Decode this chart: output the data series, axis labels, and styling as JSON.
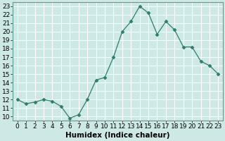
{
  "x": [
    0,
    1,
    2,
    3,
    4,
    5,
    6,
    7,
    8,
    9,
    10,
    11,
    12,
    13,
    14,
    15,
    16,
    17,
    18,
    19,
    20,
    21,
    22,
    23
  ],
  "y": [
    12,
    11.5,
    11.7,
    12,
    11.8,
    11.2,
    9.8,
    10.2,
    12,
    14.3,
    14.6,
    17,
    20,
    21.2,
    23,
    22.2,
    19.7,
    21.2,
    20.2,
    18.2,
    18.2,
    16.5,
    16,
    15
  ],
  "line_color": "#2e7d6e",
  "marker": "D",
  "marker_size": 2.5,
  "bg_color": "#cde8e5",
  "grid_color": "#ffffff",
  "title": "",
  "xlabel": "Humidex (Indice chaleur)",
  "ylabel": "",
  "xlim": [
    -0.5,
    23.5
  ],
  "ylim": [
    9.5,
    23.5
  ],
  "xtick_labels": [
    "0",
    "1",
    "2",
    "3",
    "4",
    "5",
    "6",
    "7",
    "8",
    "9",
    "10",
    "11",
    "12",
    "13",
    "14",
    "15",
    "16",
    "17",
    "18",
    "19",
    "20",
    "21",
    "22",
    "23"
  ],
  "ytick_values": [
    10,
    11,
    12,
    13,
    14,
    15,
    16,
    17,
    18,
    19,
    20,
    21,
    22,
    23
  ],
  "xlabel_fontsize": 7.5,
  "tick_fontsize": 6.5
}
